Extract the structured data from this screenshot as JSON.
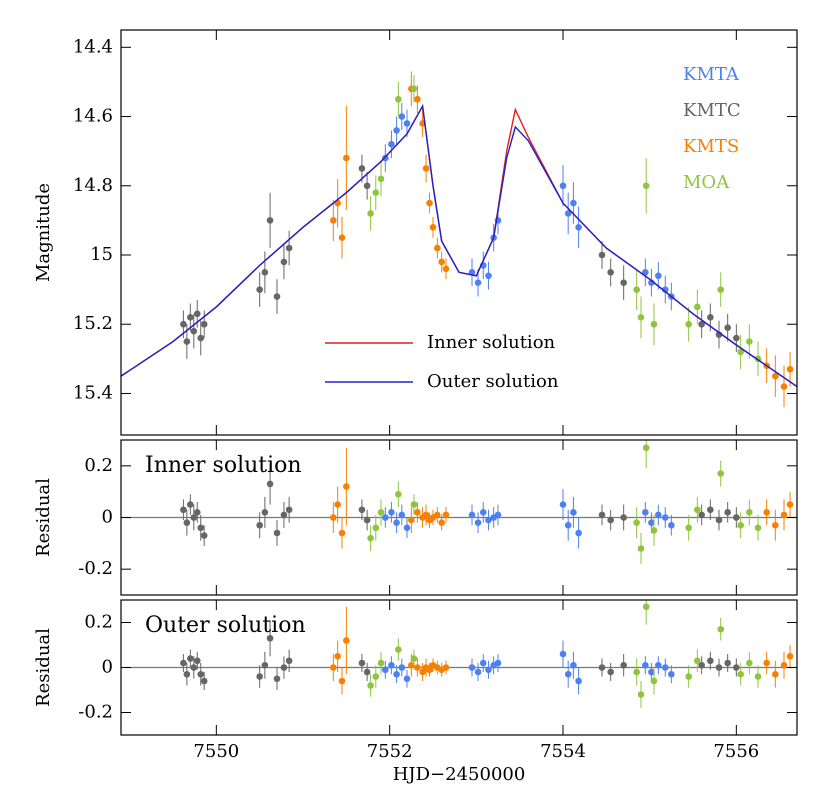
{
  "chart_data": [
    {
      "type": "scatter",
      "ylabel": "Magnitude",
      "xlim": [
        7548.9,
        7556.7
      ],
      "ylim": [
        15.52,
        14.35
      ],
      "yticks": [
        14.4,
        14.6,
        14.8,
        15,
        15.2,
        15.4
      ],
      "series": [
        {
          "name": "KMTA",
          "color": "#4f80f0",
          "x": [
            7551.95,
            7552.02,
            7552.08,
            7552.14,
            7552.2,
            7552.95,
            7553.02,
            7553.08,
            7553.14,
            7553.2,
            7553.25,
            7554.0,
            7554.06,
            7554.12,
            7554.18,
            7554.95,
            7555.02,
            7555.1,
            7555.18,
            7555.25
          ],
          "values": [
            14.72,
            14.68,
            14.64,
            14.6,
            14.62,
            15.05,
            15.08,
            15.03,
            15.06,
            14.95,
            14.9,
            14.8,
            14.88,
            14.85,
            14.92,
            15.05,
            15.08,
            15.06,
            15.1,
            15.12
          ],
          "errors": [
            0.04,
            0.04,
            0.04,
            0.04,
            0.04,
            0.04,
            0.04,
            0.04,
            0.04,
            0.04,
            0.04,
            0.06,
            0.06,
            0.06,
            0.06,
            0.04,
            0.04,
            0.04,
            0.04,
            0.04
          ]
        },
        {
          "name": "KMTC",
          "color": "#666666",
          "x": [
            7549.62,
            7549.66,
            7549.7,
            7549.74,
            7549.78,
            7549.82,
            7549.86,
            7550.5,
            7550.56,
            7550.62,
            7550.7,
            7550.78,
            7550.84,
            7551.68,
            7551.74,
            7554.45,
            7554.55,
            7554.7,
            7555.6,
            7555.7,
            7555.8,
            7555.9,
            7556.0
          ],
          "values": [
            15.2,
            15.25,
            15.18,
            15.22,
            15.17,
            15.24,
            15.2,
            15.1,
            15.05,
            14.9,
            15.12,
            15.02,
            14.98,
            14.75,
            14.8,
            15.0,
            15.05,
            15.08,
            15.2,
            15.18,
            15.23,
            15.21,
            15.24
          ],
          "errors": [
            0.04,
            0.05,
            0.04,
            0.05,
            0.04,
            0.05,
            0.04,
            0.05,
            0.06,
            0.08,
            0.05,
            0.05,
            0.05,
            0.04,
            0.04,
            0.04,
            0.04,
            0.05,
            0.04,
            0.04,
            0.04,
            0.04,
            0.04
          ]
        },
        {
          "name": "KMTS",
          "color": "#f78000",
          "x": [
            7551.35,
            7551.4,
            7551.45,
            7551.5,
            7552.25,
            7552.32,
            7552.38,
            7552.42,
            7552.46,
            7552.5,
            7552.55,
            7552.6,
            7552.65,
            7556.35,
            7556.45,
            7556.55,
            7556.62
          ],
          "values": [
            14.9,
            14.85,
            14.95,
            14.72,
            14.52,
            14.55,
            14.62,
            14.75,
            14.85,
            14.92,
            14.98,
            15.02,
            15.04,
            15.32,
            15.35,
            15.38,
            15.33
          ],
          "errors": [
            0.06,
            0.07,
            0.06,
            0.15,
            0.05,
            0.04,
            0.04,
            0.04,
            0.03,
            0.03,
            0.03,
            0.03,
            0.03,
            0.05,
            0.06,
            0.06,
            0.05
          ]
        },
        {
          "name": "MOA",
          "color": "#8fc43f",
          "x": [
            7551.78,
            7551.84,
            7551.9,
            7552.1,
            7552.28,
            7554.85,
            7554.9,
            7554.96,
            7555.05,
            7555.45,
            7555.55,
            7556.05,
            7556.15,
            7556.25,
            7555.82
          ],
          "values": [
            14.88,
            14.82,
            14.78,
            14.55,
            14.52,
            15.1,
            15.18,
            14.8,
            15.2,
            15.2,
            15.15,
            15.28,
            15.25,
            15.3,
            15.1
          ],
          "errors": [
            0.05,
            0.05,
            0.05,
            0.05,
            0.04,
            0.06,
            0.06,
            0.08,
            0.06,
            0.05,
            0.05,
            0.05,
            0.05,
            0.05,
            0.05
          ]
        }
      ],
      "models": [
        {
          "name": "Inner solution",
          "color": "#e02020",
          "x": [
            7548.9,
            7549.5,
            7550,
            7550.5,
            7551,
            7551.5,
            7551.9,
            7552.2,
            7552.38,
            7552.5,
            7552.6,
            7552.8,
            7553,
            7553.2,
            7553.35,
            7553.45,
            7553.6,
            7554,
            7554.5,
            7555,
            7555.5,
            7556,
            7556.7
          ],
          "values": [
            15.35,
            15.25,
            15.15,
            15.03,
            14.92,
            14.82,
            14.73,
            14.65,
            14.57,
            14.8,
            14.96,
            15.05,
            15.06,
            14.95,
            14.7,
            14.58,
            14.66,
            14.85,
            14.98,
            15.07,
            15.17,
            15.26,
            15.38
          ]
        },
        {
          "name": "Outer solution",
          "color": "#2020d0",
          "x": [
            7548.9,
            7549.5,
            7550,
            7550.5,
            7551,
            7551.5,
            7551.9,
            7552.2,
            7552.38,
            7552.5,
            7552.6,
            7552.8,
            7553,
            7553.2,
            7553.35,
            7553.45,
            7553.6,
            7554,
            7554.5,
            7555,
            7555.5,
            7556,
            7556.7
          ],
          "values": [
            15.35,
            15.25,
            15.15,
            15.03,
            14.92,
            14.82,
            14.73,
            14.65,
            14.57,
            14.8,
            14.96,
            15.05,
            15.06,
            14.95,
            14.72,
            14.63,
            14.67,
            14.85,
            14.98,
            15.07,
            15.17,
            15.26,
            15.38
          ]
        }
      ]
    },
    {
      "type": "scatter",
      "ylabel": "Residual",
      "annotation": "Inner solution",
      "xlim": [
        7548.9,
        7556.7
      ],
      "ylim": [
        -0.3,
        0.3
      ],
      "yticks": [
        -0.2,
        0,
        0.2
      ],
      "series": [
        {
          "color": "#4f80f0",
          "x": [
            7551.95,
            7552.02,
            7552.08,
            7552.14,
            7552.2,
            7552.95,
            7553.02,
            7553.08,
            7553.14,
            7553.2,
            7553.25,
            7554.0,
            7554.06,
            7554.12,
            7554.18,
            7554.95,
            7555.02,
            7555.1,
            7555.18,
            7555.25
          ],
          "values": [
            0,
            0.02,
            -0.02,
            0.01,
            -0.04,
            0.01,
            -0.02,
            0.02,
            -0.01,
            0,
            0.01,
            0.05,
            -0.03,
            0.02,
            -0.06,
            0.02,
            -0.02,
            0.01,
            0,
            -0.03
          ],
          "errors": [
            0.04,
            0.04,
            0.04,
            0.04,
            0.04,
            0.04,
            0.04,
            0.04,
            0.04,
            0.04,
            0.04,
            0.06,
            0.06,
            0.06,
            0.06,
            0.04,
            0.04,
            0.04,
            0.04,
            0.04
          ]
        },
        {
          "color": "#666666",
          "x": [
            7549.62,
            7549.66,
            7549.7,
            7549.74,
            7549.78,
            7549.82,
            7549.86,
            7550.5,
            7550.56,
            7550.62,
            7550.7,
            7550.78,
            7550.84,
            7551.68,
            7551.74,
            7554.45,
            7554.55,
            7554.7,
            7555.6,
            7555.7,
            7555.8,
            7555.9,
            7556.0
          ],
          "values": [
            0.03,
            -0.02,
            0.05,
            0,
            0.02,
            -0.04,
            -0.07,
            -0.03,
            0.02,
            0.13,
            -0.06,
            0.01,
            0.03,
            0.03,
            -0.01,
            0.01,
            -0.01,
            0,
            0.01,
            0.03,
            -0.01,
            0.02,
            0
          ],
          "errors": [
            0.04,
            0.05,
            0.04,
            0.05,
            0.04,
            0.05,
            0.04,
            0.05,
            0.06,
            0.08,
            0.05,
            0.05,
            0.05,
            0.04,
            0.04,
            0.04,
            0.04,
            0.05,
            0.04,
            0.04,
            0.04,
            0.04,
            0.04
          ]
        },
        {
          "color": "#f78000",
          "x": [
            7551.35,
            7551.4,
            7551.45,
            7551.5,
            7552.25,
            7552.32,
            7552.38,
            7552.42,
            7552.46,
            7552.5,
            7552.55,
            7552.6,
            7552.65,
            7556.35,
            7556.45,
            7556.55,
            7556.62
          ],
          "values": [
            0,
            0.05,
            -0.06,
            0.12,
            -0.01,
            0.02,
            0,
            0.01,
            -0.01,
            0,
            0.01,
            -0.02,
            0.01,
            0.02,
            -0.03,
            0.01,
            0.05
          ],
          "errors": [
            0.06,
            0.07,
            0.06,
            0.15,
            0.05,
            0.04,
            0.04,
            0.04,
            0.03,
            0.03,
            0.03,
            0.03,
            0.03,
            0.05,
            0.06,
            0.06,
            0.05
          ]
        },
        {
          "color": "#8fc43f",
          "x": [
            7551.78,
            7551.84,
            7551.9,
            7552.1,
            7552.28,
            7554.85,
            7554.9,
            7554.96,
            7555.05,
            7555.45,
            7555.55,
            7556.05,
            7556.15,
            7556.25,
            7555.82
          ],
          "values": [
            -0.08,
            -0.04,
            0.02,
            0.09,
            0.05,
            -0.02,
            -0.12,
            0.27,
            -0.05,
            -0.04,
            0.03,
            -0.03,
            0.02,
            -0.04,
            0.17
          ],
          "errors": [
            0.05,
            0.05,
            0.05,
            0.05,
            0.04,
            0.06,
            0.06,
            0.08,
            0.06,
            0.05,
            0.05,
            0.05,
            0.05,
            0.05,
            0.05
          ]
        }
      ]
    },
    {
      "type": "scatter",
      "ylabel": "Residual",
      "annotation": "Outer solution",
      "xlabel": "HJD−2450000",
      "xlim": [
        7548.9,
        7556.7
      ],
      "ylim": [
        -0.3,
        0.3
      ],
      "yticks": [
        -0.2,
        0,
        0.2
      ],
      "xticks": [
        7550,
        7552,
        7554,
        7556
      ],
      "series": [
        {
          "color": "#4f80f0",
          "x": [
            7551.95,
            7552.02,
            7552.08,
            7552.14,
            7552.2,
            7552.95,
            7553.02,
            7553.08,
            7553.14,
            7553.2,
            7553.25,
            7554.0,
            7554.06,
            7554.12,
            7554.18,
            7554.95,
            7555.02,
            7555.1,
            7555.18,
            7555.25
          ],
          "values": [
            -0.01,
            0.01,
            -0.03,
            0,
            -0.05,
            0,
            -0.02,
            0.02,
            -0.01,
            0.01,
            0.02,
            0.06,
            -0.03,
            0.01,
            -0.06,
            0.01,
            -0.02,
            0.01,
            0,
            -0.03
          ],
          "errors": [
            0.04,
            0.04,
            0.04,
            0.04,
            0.04,
            0.04,
            0.04,
            0.04,
            0.04,
            0.04,
            0.04,
            0.06,
            0.06,
            0.06,
            0.06,
            0.04,
            0.04,
            0.04,
            0.04,
            0.04
          ]
        },
        {
          "color": "#666666",
          "x": [
            7549.62,
            7549.66,
            7549.7,
            7549.74,
            7549.78,
            7549.82,
            7549.86,
            7550.5,
            7550.56,
            7550.62,
            7550.7,
            7550.78,
            7550.84,
            7551.68,
            7551.74,
            7554.45,
            7554.55,
            7554.7,
            7555.6,
            7555.7,
            7555.8,
            7555.9,
            7556.0
          ],
          "values": [
            0.02,
            -0.03,
            0.04,
            0,
            0.03,
            -0.03,
            -0.06,
            -0.04,
            0.01,
            0.13,
            -0.05,
            0,
            0.03,
            0.02,
            -0.02,
            0,
            -0.02,
            0.01,
            0.01,
            0.03,
            0,
            0.02,
            0
          ],
          "errors": [
            0.04,
            0.05,
            0.04,
            0.05,
            0.04,
            0.05,
            0.04,
            0.05,
            0.06,
            0.08,
            0.05,
            0.05,
            0.05,
            0.04,
            0.04,
            0.04,
            0.04,
            0.05,
            0.04,
            0.04,
            0.04,
            0.04,
            0.04
          ]
        },
        {
          "color": "#f78000",
          "x": [
            7551.35,
            7551.4,
            7551.45,
            7551.5,
            7552.25,
            7552.32,
            7552.38,
            7552.42,
            7552.46,
            7552.5,
            7552.55,
            7552.6,
            7552.65,
            7556.35,
            7556.45,
            7556.55,
            7556.62
          ],
          "values": [
            0,
            0.05,
            -0.06,
            0.12,
            0.01,
            0,
            -0.02,
            0,
            -0.01,
            0.01,
            0,
            -0.01,
            0,
            0.02,
            -0.03,
            0.01,
            0.05
          ],
          "errors": [
            0.06,
            0.07,
            0.06,
            0.15,
            0.05,
            0.04,
            0.04,
            0.04,
            0.03,
            0.03,
            0.03,
            0.03,
            0.03,
            0.05,
            0.06,
            0.06,
            0.05
          ]
        },
        {
          "color": "#8fc43f",
          "x": [
            7551.78,
            7551.84,
            7551.9,
            7552.1,
            7552.28,
            7554.85,
            7554.9,
            7554.96,
            7555.05,
            7555.45,
            7555.55,
            7556.05,
            7556.15,
            7556.25,
            7555.82
          ],
          "values": [
            -0.08,
            -0.04,
            0.02,
            0.08,
            0.04,
            -0.02,
            -0.12,
            0.27,
            -0.06,
            -0.04,
            0.03,
            -0.03,
            0.02,
            -0.04,
            0.17
          ],
          "errors": [
            0.05,
            0.05,
            0.05,
            0.05,
            0.04,
            0.06,
            0.06,
            0.08,
            0.06,
            0.05,
            0.05,
            0.05,
            0.05,
            0.05,
            0.05
          ]
        }
      ]
    }
  ]
}
